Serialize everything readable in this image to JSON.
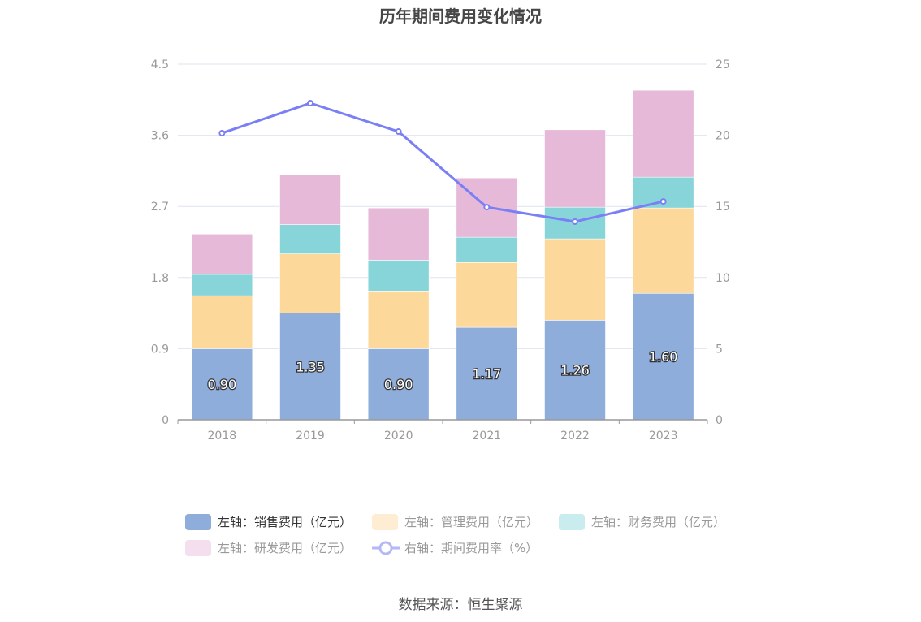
{
  "title": "历年期间费用变化情况",
  "source": "数据来源：恒生聚源",
  "chart_data": {
    "type": "bar",
    "stacked": true,
    "categories": [
      "2018",
      "2019",
      "2020",
      "2021",
      "2022",
      "2023"
    ],
    "y_left": {
      "ticks": [
        "0",
        "0.9",
        "1.8",
        "2.7",
        "3.6",
        "4.5"
      ],
      "range": [
        0,
        4.5
      ]
    },
    "y_right": {
      "ticks": [
        "0",
        "5",
        "10",
        "15",
        "20",
        "25"
      ],
      "range": [
        0,
        25
      ]
    },
    "grid": true,
    "legend_position": "bottom",
    "series": [
      {
        "name": "左轴：销售费用（亿元）",
        "axis": "left",
        "type": "bar",
        "color": "#8eaddb",
        "values": [
          0.9,
          1.35,
          0.9,
          1.17,
          1.26,
          1.6
        ],
        "labels": [
          "0.90",
          "1.35",
          "0.90",
          "1.17",
          "1.26",
          "1.60"
        ],
        "active": true
      },
      {
        "name": "左轴：管理费用（亿元）",
        "axis": "left",
        "type": "bar",
        "color": "#fdd89b",
        "values": [
          0.67,
          0.75,
          0.73,
          0.82,
          1.03,
          1.08
        ],
        "active": false
      },
      {
        "name": "左轴：财务费用（亿元）",
        "axis": "left",
        "type": "bar",
        "color": "#88d5d9",
        "values": [
          0.27,
          0.37,
          0.39,
          0.32,
          0.4,
          0.39
        ],
        "active": false
      },
      {
        "name": "左轴：研发费用（亿元）",
        "axis": "left",
        "type": "bar",
        "color": "#e6b9d9",
        "values": [
          0.51,
          0.63,
          0.66,
          0.75,
          0.98,
          1.1
        ],
        "active": false
      },
      {
        "name": "右轴：期间费用率（%）",
        "axis": "right",
        "type": "line",
        "color": "#7b7ff5",
        "values": [
          20.15,
          22.26,
          20.26,
          14.95,
          13.93,
          15.35
        ],
        "active": false
      }
    ]
  }
}
